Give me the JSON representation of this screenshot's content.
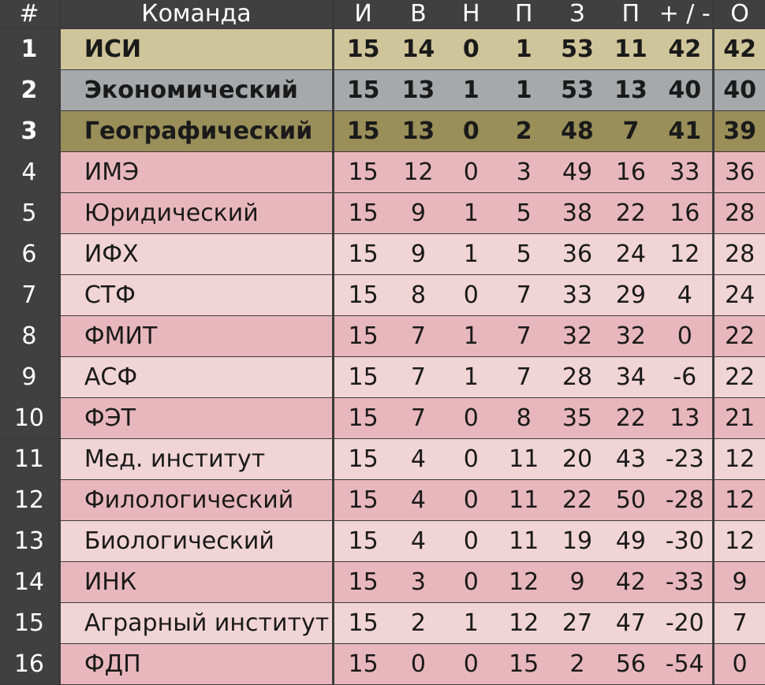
{
  "header": {
    "num": "#",
    "team": "Команда",
    "i": "И",
    "v": "В",
    "n": "Н",
    "p": "П",
    "z": "З",
    "p2": "П",
    "diff": "+ / -",
    "o": "О"
  },
  "colors": {
    "gold": "#cfc59a",
    "silver": "#a6a8ab",
    "bronze": "#9a8e59",
    "pink_dark": "#e8b7bd",
    "pink_light": "#f1d4d6",
    "header_bg": "#404040"
  },
  "rows": [
    {
      "num": "1",
      "team": "ИСИ",
      "i": "15",
      "v": "14",
      "n": "0",
      "p": "1",
      "z": "53",
      "p2": "11",
      "diff": "42",
      "o": "42",
      "color": "#cfc59a",
      "bold": true
    },
    {
      "num": "2",
      "team": "Экономический",
      "i": "15",
      "v": "13",
      "n": "1",
      "p": "1",
      "z": "53",
      "p2": "13",
      "diff": "40",
      "o": "40",
      "color": "#a6a8ab",
      "bold": true
    },
    {
      "num": "3",
      "team": "Географический",
      "i": "15",
      "v": "13",
      "n": "0",
      "p": "2",
      "z": "48",
      "p2": "7",
      "diff": "41",
      "o": "39",
      "color": "#9a8e59",
      "bold": true
    },
    {
      "num": "4",
      "team": "ИМЭ",
      "i": "15",
      "v": "12",
      "n": "0",
      "p": "3",
      "z": "49",
      "p2": "16",
      "diff": "33",
      "o": "36",
      "color": "#e8b7bd",
      "bold": false
    },
    {
      "num": "5",
      "team": "Юридический",
      "i": "15",
      "v": "9",
      "n": "1",
      "p": "5",
      "z": "38",
      "p2": "22",
      "diff": "16",
      "o": "28",
      "color": "#e8b7bd",
      "bold": false
    },
    {
      "num": "6",
      "team": "ИФХ",
      "i": "15",
      "v": "9",
      "n": "1",
      "p": "5",
      "z": "36",
      "p2": "24",
      "diff": "12",
      "o": "28",
      "color": "#f1d4d6",
      "bold": false
    },
    {
      "num": "7",
      "team": "СТФ",
      "i": "15",
      "v": "8",
      "n": "0",
      "p": "7",
      "z": "33",
      "p2": "29",
      "diff": "4",
      "o": "24",
      "color": "#f1d4d6",
      "bold": false
    },
    {
      "num": "8",
      "team": "ФМИТ",
      "i": "15",
      "v": "7",
      "n": "1",
      "p": "7",
      "z": "32",
      "p2": "32",
      "diff": "0",
      "o": "22",
      "color": "#e8b7bd",
      "bold": false
    },
    {
      "num": "9",
      "team": "АСФ",
      "i": "15",
      "v": "7",
      "n": "1",
      "p": "7",
      "z": "28",
      "p2": "34",
      "diff": "-6",
      "o": "22",
      "color": "#f1d4d6",
      "bold": false
    },
    {
      "num": "10",
      "team": "ФЭТ",
      "i": "15",
      "v": "7",
      "n": "0",
      "p": "8",
      "z": "35",
      "p2": "22",
      "diff": "13",
      "o": "21",
      "color": "#e8b7bd",
      "bold": false
    },
    {
      "num": "11",
      "team": "Мед. институт",
      "i": "15",
      "v": "4",
      "n": "0",
      "p": "11",
      "z": "20",
      "p2": "43",
      "diff": "-23",
      "o": "12",
      "color": "#f1d4d6",
      "bold": false
    },
    {
      "num": "12",
      "team": "Филологический",
      "i": "15",
      "v": "4",
      "n": "0",
      "p": "11",
      "z": "22",
      "p2": "50",
      "diff": "-28",
      "o": "12",
      "color": "#e8b7bd",
      "bold": false
    },
    {
      "num": "13",
      "team": "Биологический",
      "i": "15",
      "v": "4",
      "n": "0",
      "p": "11",
      "z": "19",
      "p2": "49",
      "diff": "-30",
      "o": "12",
      "color": "#f1d4d6",
      "bold": false
    },
    {
      "num": "14",
      "team": "ИНК",
      "i": "15",
      "v": "3",
      "n": "0",
      "p": "12",
      "z": "9",
      "p2": "42",
      "diff": "-33",
      "o": "9",
      "color": "#e8b7bd",
      "bold": false
    },
    {
      "num": "15",
      "team": "Аграрный институт",
      "i": "15",
      "v": "2",
      "n": "1",
      "p": "12",
      "z": "27",
      "p2": "47",
      "diff": "-20",
      "o": "7",
      "color": "#f1d4d6",
      "bold": false
    },
    {
      "num": "16",
      "team": "ФДП",
      "i": "15",
      "v": "0",
      "n": "0",
      "p": "15",
      "z": "2",
      "p2": "56",
      "diff": "-54",
      "o": "0",
      "color": "#e8b7bd",
      "bold": false
    }
  ]
}
